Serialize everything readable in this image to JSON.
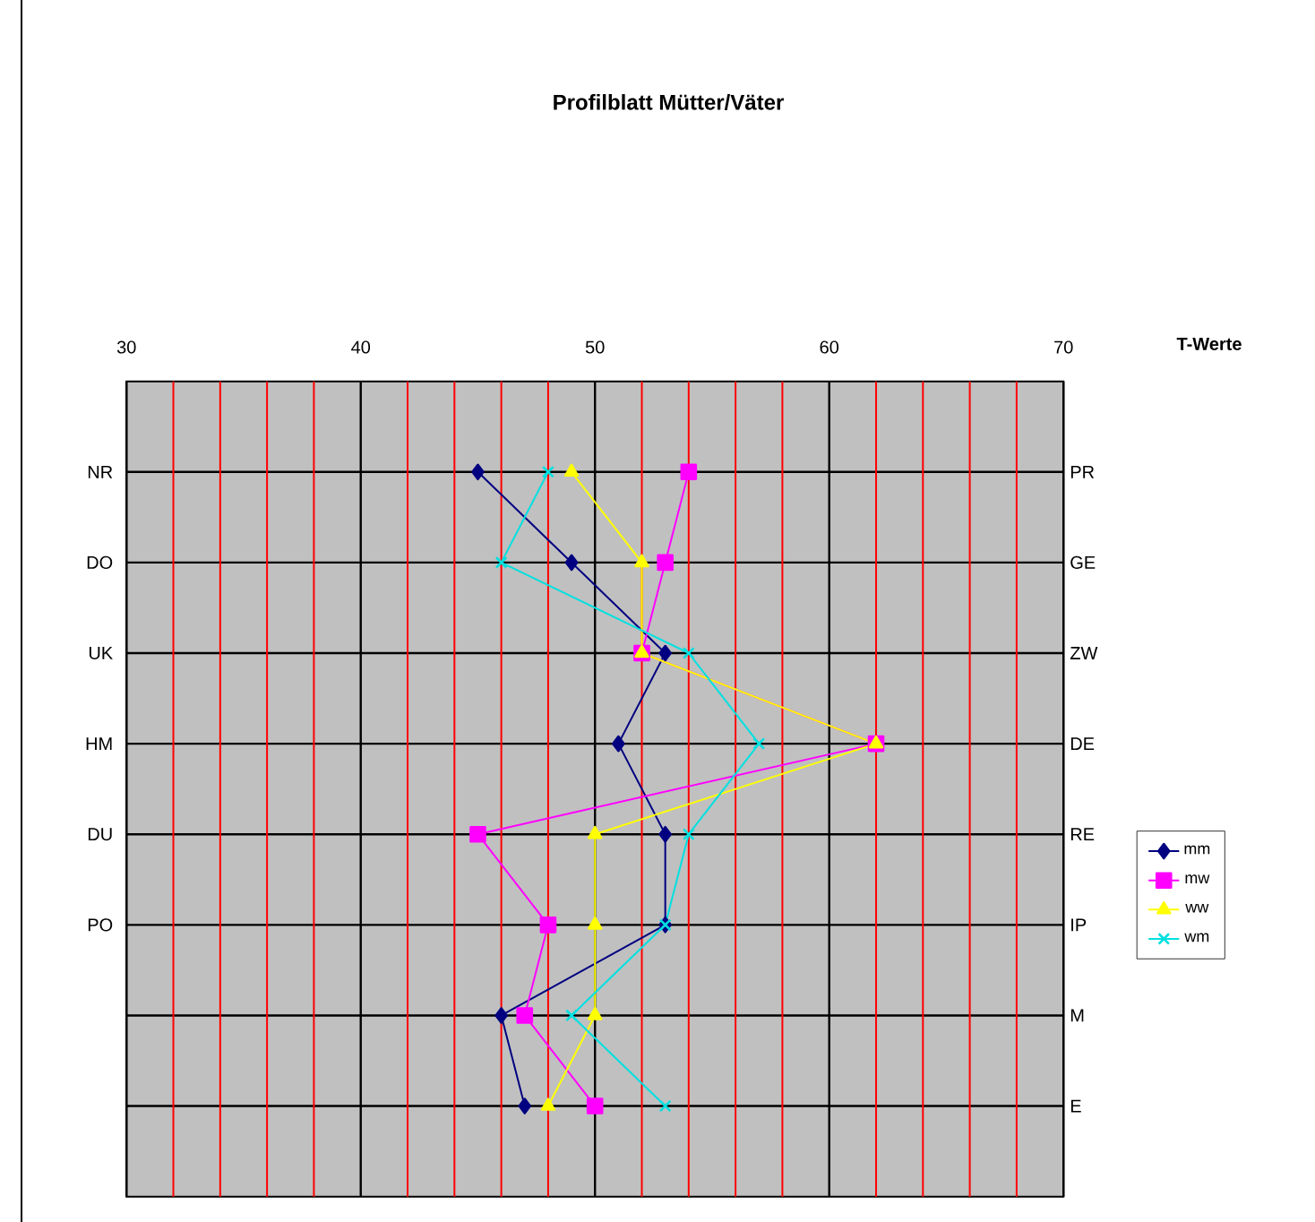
{
  "chart_data": {
    "type": "line",
    "title": "Profilblatt Mütter/Väter",
    "annotations": [
      "T-Werte"
    ],
    "categories": [
      "NR",
      "DO",
      "UK",
      "HM",
      "DU",
      "PO",
      null,
      null
    ],
    "y2_categories": [
      "PR",
      "GE",
      "ZW",
      "DE",
      "RE",
      "IP",
      "M",
      "E"
    ],
    "orientation": "horizontal",
    "xlim": [
      30,
      70
    ],
    "xticks": [
      30,
      {
        "value": 32,
        "label": null
      },
      {
        "value": 34,
        "label": null
      },
      {
        "value": 36,
        "label": null
      },
      {
        "value": 38,
        "label": null
      },
      40,
      {
        "value": 42,
        "label": null
      },
      {
        "value": 44,
        "label": null
      },
      {
        "value": 46,
        "label": null
      },
      {
        "value": 48,
        "label": null
      },
      50,
      {
        "value": 52,
        "label": null
      },
      {
        "value": 54,
        "label": null
      },
      {
        "value": 56,
        "label": null
      },
      {
        "value": 58,
        "label": null
      },
      60,
      {
        "value": 62,
        "label": null
      },
      {
        "value": 64,
        "label": null
      },
      {
        "value": 66,
        "label": null
      },
      {
        "value": 68,
        "label": null
      },
      70
    ],
    "grid": true,
    "legend": "right",
    "series": [
      {
        "name": "mm",
        "color": "#000080",
        "marker": "diamond",
        "values": [
          45,
          49,
          53,
          51,
          53,
          53,
          46,
          47
        ]
      },
      {
        "name": "mw",
        "color": "#ff00ff",
        "marker": "square",
        "values": [
          54,
          53,
          52,
          62,
          45,
          48,
          47,
          50
        ]
      },
      {
        "name": "ww",
        "color": "#ffff00",
        "marker": "triangle",
        "values": [
          49,
          52,
          52,
          62,
          50,
          50,
          50,
          48
        ]
      },
      {
        "name": "wm",
        "color": "#00e0e0",
        "marker": "cross",
        "values": [
          48,
          46,
          54,
          57,
          54,
          53,
          49,
          53
        ]
      }
    ]
  }
}
